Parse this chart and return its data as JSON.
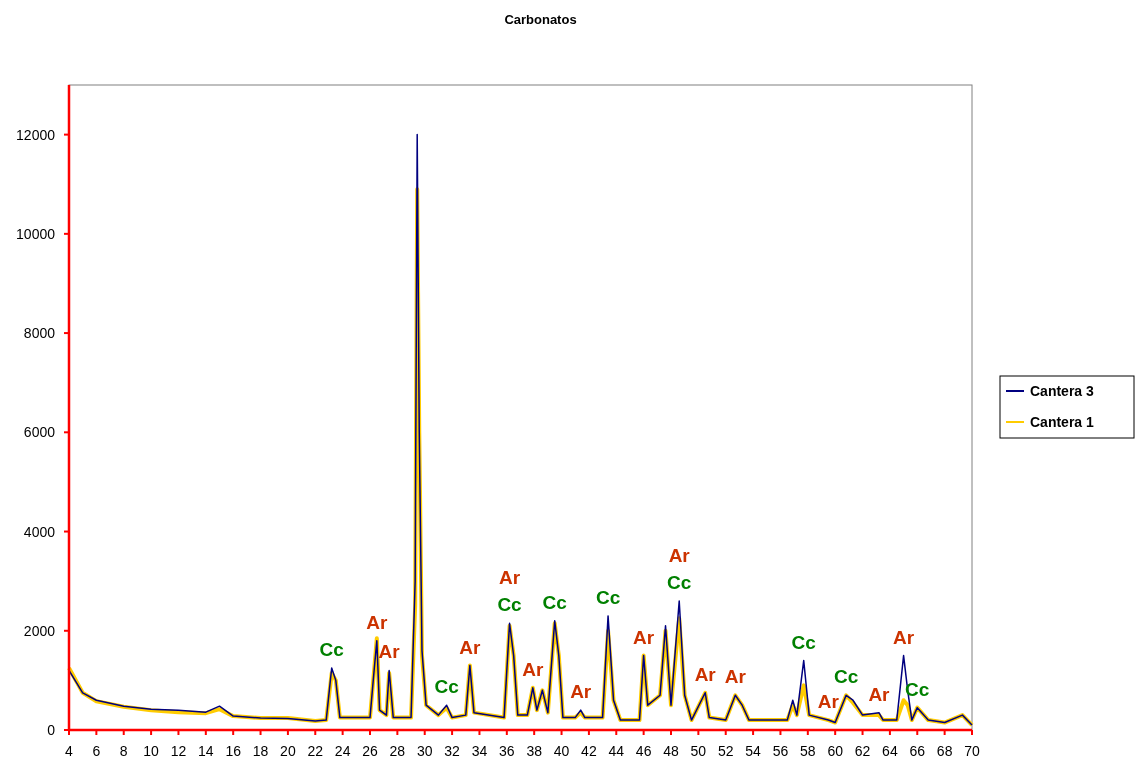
{
  "chart_data": {
    "type": "line",
    "title": "Carbonatos",
    "x": [
      4,
      5,
      6,
      8,
      10,
      12,
      14,
      15,
      16,
      18,
      20,
      22,
      22.8,
      23.2,
      23.5,
      23.8,
      26,
      26.3,
      26.5,
      26.7,
      27.2,
      27.4,
      27.7,
      29,
      29.3,
      29.45,
      29.6,
      29.8,
      30.1,
      31,
      31.6,
      32,
      33,
      33.3,
      33.6,
      35.8,
      36.2,
      36.5,
      36.8,
      37.5,
      37.9,
      38.2,
      38.6,
      39,
      39.5,
      39.8,
      40.1,
      41,
      41.4,
      41.7,
      43,
      43.4,
      43.8,
      44.3,
      45.7,
      46,
      46.3,
      47.2,
      47.6,
      48,
      48.6,
      49,
      49.5,
      50.5,
      50.8,
      52,
      52.7,
      53.2,
      53.7,
      56.5,
      56.9,
      57.2,
      57.7,
      58.1,
      59.5,
      60,
      60.8,
      61.3,
      62,
      63.2,
      63.5,
      64.5,
      65,
      65.3,
      65.6,
      66,
      66.8,
      68,
      69.3,
      70
    ],
    "series": [
      {
        "name": "Cantera 3",
        "color": "#000080",
        "values": [
          1200,
          750,
          600,
          480,
          420,
          400,
          360,
          480,
          280,
          240,
          230,
          180,
          200,
          1250,
          1000,
          250,
          250,
          1200,
          1800,
          400,
          300,
          1200,
          250,
          250,
          3000,
          12000,
          6000,
          1600,
          500,
          300,
          500,
          250,
          300,
          1300,
          350,
          250,
          2150,
          1500,
          300,
          300,
          850,
          400,
          800,
          350,
          2200,
          1500,
          250,
          250,
          400,
          250,
          250,
          2300,
          600,
          200,
          200,
          1500,
          500,
          700,
          2100,
          500,
          2600,
          700,
          200,
          750,
          250,
          200,
          700,
          500,
          200,
          200,
          600,
          300,
          1400,
          300,
          200,
          150,
          700,
          600,
          300,
          350,
          200,
          200,
          1500,
          800,
          200,
          450,
          200,
          150,
          300,
          100
        ]
      },
      {
        "name": "Cantera 1",
        "color": "#ffcc00",
        "values": [
          1250,
          750,
          580,
          470,
          400,
          360,
          340,
          420,
          280,
          240,
          240,
          180,
          200,
          1150,
          1000,
          250,
          250,
          1200,
          1850,
          400,
          300,
          1150,
          250,
          250,
          2500,
          10900,
          6000,
          1500,
          500,
          300,
          450,
          250,
          300,
          1300,
          350,
          250,
          2100,
          1500,
          300,
          300,
          850,
          400,
          800,
          350,
          2150,
          1500,
          250,
          250,
          350,
          250,
          250,
          2000,
          600,
          200,
          200,
          1500,
          500,
          700,
          2000,
          500,
          2250,
          700,
          200,
          750,
          250,
          200,
          700,
          500,
          200,
          200,
          500,
          300,
          900,
          300,
          200,
          150,
          700,
          550,
          300,
          300,
          200,
          200,
          600,
          500,
          200,
          450,
          200,
          150,
          300,
          100
        ]
      }
    ],
    "xlim": [
      4,
      70
    ],
    "xticks": [
      4,
      6,
      8,
      10,
      12,
      14,
      16,
      18,
      20,
      22,
      24,
      26,
      28,
      30,
      32,
      34,
      36,
      38,
      40,
      42,
      44,
      46,
      48,
      50,
      52,
      54,
      56,
      58,
      60,
      62,
      64,
      66,
      68,
      70
    ],
    "ylim": [
      0,
      13000
    ],
    "yticks": [
      0,
      2000,
      4000,
      6000,
      8000,
      10000,
      12000
    ],
    "grid": false,
    "legend": "right",
    "annotations": [
      {
        "text": "Cc",
        "x": 23.2,
        "y": 1250
      },
      {
        "text": "Ar",
        "x": 26.5,
        "y": 1800
      },
      {
        "text": "Ar",
        "x": 27.4,
        "y": 1200
      },
      {
        "text": "Cc",
        "x": 31.6,
        "y": 500
      },
      {
        "text": "Ar",
        "x": 33.3,
        "y": 1300
      },
      {
        "text": "Cc",
        "x": 36.2,
        "y": 2150
      },
      {
        "text": "Ar",
        "x": 36.2,
        "y": 2150
      },
      {
        "text": "Ar",
        "x": 37.9,
        "y": 850
      },
      {
        "text": "Cc",
        "x": 39.5,
        "y": 2200
      },
      {
        "text": "Ar",
        "x": 41.4,
        "y": 400
      },
      {
        "text": "Cc",
        "x": 43.4,
        "y": 2300
      },
      {
        "text": "Ar",
        "x": 46,
        "y": 1500
      },
      {
        "text": "Cc",
        "x": 48.6,
        "y": 2600
      },
      {
        "text": "Ar",
        "x": 48.6,
        "y": 2600
      },
      {
        "text": "Ar",
        "x": 50.5,
        "y": 750
      },
      {
        "text": "Ar",
        "x": 52.7,
        "y": 700
      },
      {
        "text": "Cc",
        "x": 57.7,
        "y": 1400
      },
      {
        "text": "Ar",
        "x": 59.5,
        "y": 200
      },
      {
        "text": "Cc",
        "x": 60.8,
        "y": 700
      },
      {
        "text": "Ar",
        "x": 63.2,
        "y": 350
      },
      {
        "text": "Ar",
        "x": 65,
        "y": 1500
      },
      {
        "text": "Cc",
        "x": 66,
        "y": 450
      }
    ]
  }
}
